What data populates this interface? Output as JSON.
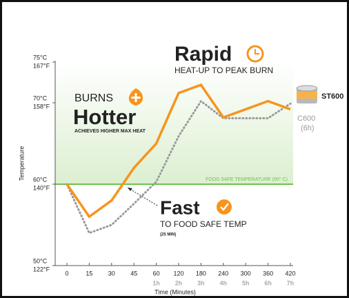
{
  "chart_data": {
    "type": "line",
    "x_label": "Time (Minutes)",
    "y_label": "Temperature",
    "categories": [
      "0",
      "15",
      "30",
      "45",
      "60",
      "120",
      "180",
      "240",
      "300",
      "360",
      "420"
    ],
    "hour_labels": [
      null,
      null,
      null,
      null,
      "1h",
      "2h",
      "3h",
      "4h",
      "5h",
      "6h",
      "7h"
    ],
    "ylim": [
      50,
      75
    ],
    "yticks": [
      {
        "value": 50,
        "label": "50°C"
      },
      {
        "value": 60,
        "label": "60°C"
      },
      {
        "value": 70,
        "label": "70°C"
      },
      {
        "value": 75,
        "label": "75°C"
      }
    ],
    "ytick_labels_f": [
      "122°F",
      "140°F",
      "158°F",
      "167°F"
    ],
    "food_safe": {
      "value": 60,
      "label": "FOOD SAFE TEMPERATURE (60° C)",
      "color": "#6cc24a"
    },
    "series": [
      {
        "name": "ST600",
        "color": "#f7941d",
        "dash": false,
        "values": [
          60,
          56,
          58,
          62,
          65,
          71.2,
          72.2,
          68.2,
          69.2,
          70.2,
          69.2
        ]
      },
      {
        "name": "C600",
        "note": "(6h)",
        "color": "#9a9a9a",
        "dash": true,
        "values": [
          60,
          54,
          55,
          57.6,
          60.3,
          65.9,
          70.2,
          68.1,
          68.1,
          68.1,
          69.9
        ]
      }
    ],
    "annotations": {
      "rapid": "Rapid",
      "rapid_sub": "HEAT-UP TO PEAK BURN",
      "burns": "BURNS",
      "hotter": "Hotter",
      "hotter_sub": "ACHIEVES HIGHER MAX HEAT",
      "fast": "Fast",
      "fast_sub": "TO FOOD SAFE TEMP",
      "fast_note": "(25 MIN)"
    }
  }
}
